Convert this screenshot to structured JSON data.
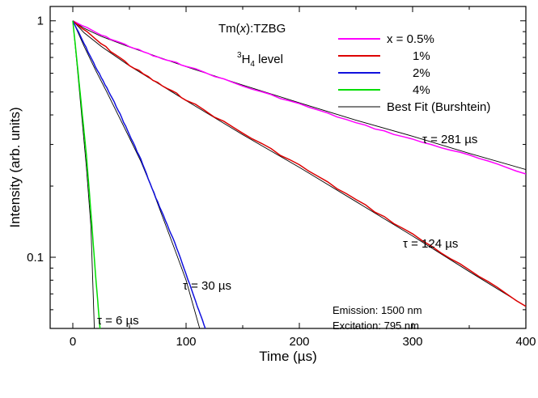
{
  "chart_data": {
    "type": "line",
    "xlabel": "Time (µs)",
    "ylabel": "Intensity (arb. units)",
    "xlim": [
      -20,
      400
    ],
    "ylim": [
      0.05,
      1.15
    ],
    "yscale": "log",
    "x_ticks": [
      0,
      100,
      200,
      300,
      400
    ],
    "x_tick_labels": [
      "0",
      "100",
      "200",
      "300",
      "400"
    ],
    "y_ticks": [
      0.1,
      1
    ],
    "y_tick_labels": [
      "0.1",
      "1"
    ],
    "grid": false,
    "legend_position": "top-right",
    "annotations": {
      "title_prefix": "Tm(",
      "title_var": "x",
      "title_suffix": "):TZBG",
      "level_sup": "3",
      "level_main": "H",
      "level_sub": "4",
      "level_suffix": " level",
      "emission": "Emission: 1500 nm",
      "excitation": "Excitation: 795 nm"
    },
    "series": [
      {
        "name": "x = 0.5%",
        "color": "#ff00ff",
        "x": [
          0,
          25,
          50,
          75,
          100,
          150,
          200,
          250,
          300,
          350,
          400
        ],
        "y": [
          1.0,
          0.87,
          0.78,
          0.7,
          0.645,
          0.53,
          0.445,
          0.37,
          0.315,
          0.27,
          0.225
        ],
        "tau_label": "τ = 281 µs"
      },
      {
        "name": "1%",
        "color": "#dd0000",
        "x": [
          0,
          25,
          50,
          75,
          100,
          150,
          200,
          250,
          300,
          350,
          400
        ],
        "y": [
          1.0,
          0.8,
          0.65,
          0.545,
          0.465,
          0.335,
          0.245,
          0.175,
          0.125,
          0.088,
          0.062
        ],
        "tau_label": "τ = 124 µs"
      },
      {
        "name": "2%",
        "color": "#1010dd",
        "x": [
          0,
          10,
          20,
          30,
          40,
          50,
          60,
          70,
          80,
          90,
          100,
          110,
          117
        ],
        "y": [
          1.0,
          0.8,
          0.64,
          0.52,
          0.42,
          0.33,
          0.26,
          0.195,
          0.15,
          0.115,
          0.085,
          0.062,
          0.05
        ],
        "tau_label": "τ = 30 µs"
      },
      {
        "name": "4%",
        "color": "#00dd00",
        "x": [
          0,
          4,
          8,
          12,
          16,
          20,
          24
        ],
        "y": [
          1.0,
          0.65,
          0.42,
          0.27,
          0.155,
          0.085,
          0.05
        ],
        "tau_label": "τ = 6 µs"
      },
      {
        "name": "Best Fit (Burshtein)",
        "color": "#000000",
        "is_fit": true
      }
    ],
    "fits": [
      {
        "x": [
          0,
          10,
          25,
          50,
          100,
          150,
          200,
          250,
          300,
          350,
          400
        ],
        "y": [
          1.0,
          0.93,
          0.86,
          0.775,
          0.64,
          0.535,
          0.45,
          0.38,
          0.325,
          0.275,
          0.235
        ]
      },
      {
        "x": [
          0,
          10,
          25,
          50,
          100,
          150,
          200,
          250,
          300,
          350,
          400
        ],
        "y": [
          1.0,
          0.89,
          0.78,
          0.645,
          0.46,
          0.33,
          0.24,
          0.172,
          0.123,
          0.087,
          0.062
        ]
      },
      {
        "x": [
          0,
          10,
          20,
          30,
          40,
          50,
          60,
          70,
          80,
          90,
          100,
          112
        ],
        "y": [
          1.0,
          0.78,
          0.62,
          0.5,
          0.4,
          0.32,
          0.255,
          0.195,
          0.145,
          0.108,
          0.08,
          0.05
        ]
      },
      {
        "x": [
          0,
          4,
          8,
          12,
          16,
          19
        ],
        "y": [
          1.0,
          0.63,
          0.39,
          0.24,
          0.135,
          0.05
        ]
      }
    ]
  }
}
